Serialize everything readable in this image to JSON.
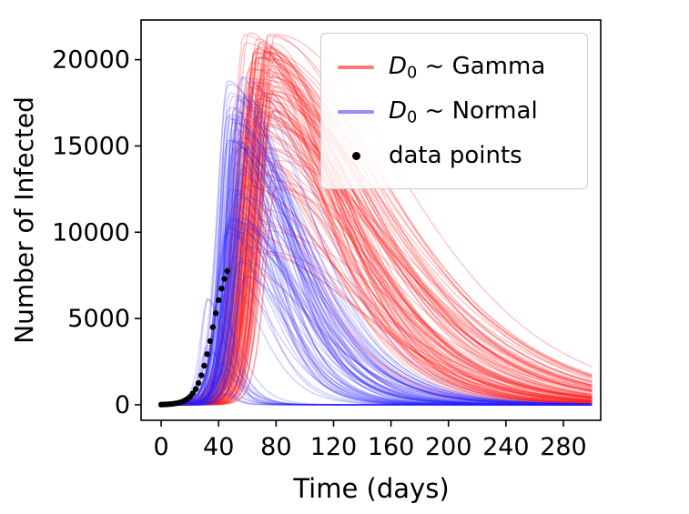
{
  "figure": {
    "background": "#ffffff",
    "xlabel": "Time (days)",
    "ylabel": "Number of Infected"
  },
  "legend": {
    "items": [
      {
        "symbol": "D",
        "subscript": "0",
        "rest": " ~ Gamma",
        "type": "line",
        "color": "#ff2020",
        "swatch_opacity": 0.6
      },
      {
        "symbol": "D",
        "subscript": "0",
        "rest": " ~ Normal",
        "type": "line",
        "color": "#2a20ff",
        "swatch_opacity": 0.5
      },
      {
        "label": "data points",
        "type": "dot",
        "color": "#000000"
      }
    ]
  },
  "chart_data": {
    "type": "line",
    "title": "",
    "xlabel": "Time (days)",
    "ylabel": "Number of Infected",
    "xlim": [
      -14,
      306
    ],
    "ylim": [
      -900,
      22300
    ],
    "xticks": [
      0,
      40,
      80,
      120,
      160,
      200,
      240,
      280
    ],
    "yticks": [
      0,
      5000,
      10000,
      15000,
      20000
    ],
    "grid": false,
    "legend_position": "upper right",
    "seed": 42,
    "ensembles": [
      {
        "id": "gamma",
        "label": "D0 ~ Gamma",
        "color": "#ff2020",
        "opacity": 0.26,
        "linewidth": 1.4,
        "count": 115,
        "modes": [
          {
            "w": 1.0,
            "peak": [
              6500,
              21600,
              0.45
            ],
            "tp": [
              57,
              80
            ],
            "rise": [
              9,
              14
            ],
            "fall": [
              60,
              125
            ]
          }
        ]
      },
      {
        "id": "normal",
        "label": "D0 ~ Normal",
        "color": "#2a20ff",
        "opacity": 0.22,
        "linewidth": 1.4,
        "count": 100,
        "modes": [
          {
            "w": 0.25,
            "peak": [
              400,
              7600,
              1.0
            ],
            "tp": [
              31,
              46
            ],
            "rise": [
              4,
              8
            ],
            "fall": [
              9,
              22
            ]
          },
          {
            "w": 0.75,
            "peak": [
              7000,
              19000,
              0.8
            ],
            "tp": [
              46,
              60
            ],
            "rise": [
              7,
              11
            ],
            "fall": [
              30,
              70
            ]
          }
        ]
      }
    ],
    "data_points": {
      "label": "data points",
      "color": "#000000",
      "marker_radius": 3.2,
      "x": [
        0,
        2,
        4,
        6,
        8,
        10,
        12,
        14,
        16,
        18,
        20,
        22,
        24,
        26,
        28,
        30,
        32,
        34,
        36,
        38,
        40,
        42,
        44,
        46
      ],
      "y": [
        13,
        19,
        27,
        38,
        55,
        79,
        113,
        162,
        231,
        330,
        465,
        654,
        912,
        1255,
        1704,
        2265,
        2933,
        3692,
        4500,
        5310,
        6068,
        6737,
        7293,
        7745
      ]
    }
  }
}
